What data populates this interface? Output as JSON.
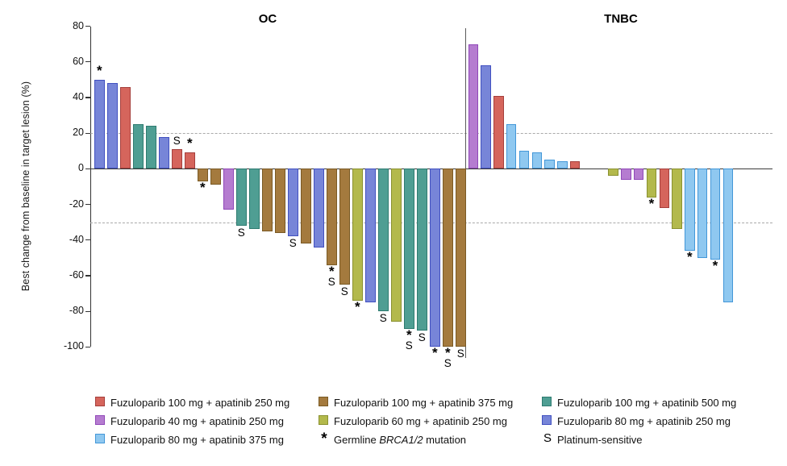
{
  "figure": {
    "panel_titles": [
      "OC",
      "TNBC"
    ]
  },
  "chart_data": {
    "type": "bar",
    "subtype": "waterfall",
    "title": "",
    "xlabel": "",
    "ylabel": "Best change from baseline in target lesion (%)",
    "ylim": [
      -100,
      80
    ],
    "yticks": [
      80,
      60,
      40,
      20,
      0,
      -20,
      -40,
      -60,
      -80,
      -100
    ],
    "reference_lines": [
      20,
      -30
    ],
    "grid": false,
    "legend_position": "bottom",
    "marker_meaning": {
      "star": "Germline BRCA1/2 mutation",
      "S": "Platinum-sensitive"
    },
    "colors": {
      "red": {
        "fill": "#D5655C",
        "border": "#A53F3C"
      },
      "brown": {
        "fill": "#A47A3E",
        "border": "#7A5A24"
      },
      "teal": {
        "fill": "#4F9E93",
        "border": "#2E7B70"
      },
      "purple": {
        "fill": "#B57CD0",
        "border": "#9048B8"
      },
      "olive": {
        "fill": "#B3B94C",
        "border": "#8A9130"
      },
      "indigo": {
        "fill": "#7785D8",
        "border": "#4150C0"
      },
      "lightblue": {
        "fill": "#8FC8F0",
        "border": "#4397D8"
      }
    },
    "panels": [
      {
        "name": "OC",
        "bars": [
          {
            "value": 50,
            "color": "indigo",
            "mark": "*"
          },
          {
            "value": 48,
            "color": "indigo",
            "mark": ""
          },
          {
            "value": 46,
            "color": "red",
            "mark": ""
          },
          {
            "value": 25,
            "color": "teal",
            "mark": ""
          },
          {
            "value": 24,
            "color": "teal",
            "mark": ""
          },
          {
            "value": 18,
            "color": "indigo",
            "mark": ""
          },
          {
            "value": 11,
            "color": "red",
            "mark": "S"
          },
          {
            "value": 9,
            "color": "red",
            "mark": "*"
          },
          {
            "value": -7,
            "color": "brown",
            "mark": "*"
          },
          {
            "value": -9,
            "color": "brown",
            "mark": ""
          },
          {
            "value": -23,
            "color": "purple",
            "mark": ""
          },
          {
            "value": -32,
            "color": "teal",
            "mark": "S"
          },
          {
            "value": -34,
            "color": "teal",
            "mark": ""
          },
          {
            "value": -35,
            "color": "brown",
            "mark": ""
          },
          {
            "value": -36,
            "color": "brown",
            "mark": ""
          },
          {
            "value": -38,
            "color": "indigo",
            "mark": "S"
          },
          {
            "value": -42,
            "color": "brown",
            "mark": ""
          },
          {
            "value": -44,
            "color": "indigo",
            "mark": ""
          },
          {
            "value": -54,
            "color": "brown",
            "mark": "*S"
          },
          {
            "value": -65,
            "color": "brown",
            "mark": "S"
          },
          {
            "value": -74,
            "color": "olive",
            "mark": "*"
          },
          {
            "value": -75,
            "color": "indigo",
            "mark": ""
          },
          {
            "value": -80,
            "color": "teal",
            "mark": "S"
          },
          {
            "value": -86,
            "color": "olive",
            "mark": ""
          },
          {
            "value": -90,
            "color": "teal",
            "mark": "*S"
          },
          {
            "value": -91,
            "color": "teal",
            "mark": "S"
          },
          {
            "value": -100,
            "color": "indigo",
            "mark": "*"
          },
          {
            "value": -100,
            "color": "brown",
            "mark": "*S"
          },
          {
            "value": -100,
            "color": "brown",
            "mark": "S"
          }
        ]
      },
      {
        "name": "TNBC",
        "gap_after_index": 8,
        "gap_slots": 2,
        "bars": [
          {
            "value": 70,
            "color": "purple",
            "mark": ""
          },
          {
            "value": 58,
            "color": "indigo",
            "mark": ""
          },
          {
            "value": 41,
            "color": "red",
            "mark": ""
          },
          {
            "value": 25,
            "color": "lightblue",
            "mark": ""
          },
          {
            "value": 10,
            "color": "lightblue",
            "mark": ""
          },
          {
            "value": 9,
            "color": "lightblue",
            "mark": ""
          },
          {
            "value": 5,
            "color": "lightblue",
            "mark": ""
          },
          {
            "value": 4,
            "color": "lightblue",
            "mark": ""
          },
          {
            "value": 4,
            "color": "red",
            "mark": ""
          },
          {
            "value": -4,
            "color": "olive",
            "mark": ""
          },
          {
            "value": -6,
            "color": "purple",
            "mark": ""
          },
          {
            "value": -6,
            "color": "purple",
            "mark": ""
          },
          {
            "value": -16,
            "color": "olive",
            "mark": "*"
          },
          {
            "value": -22,
            "color": "red",
            "mark": ""
          },
          {
            "value": -34,
            "color": "olive",
            "mark": ""
          },
          {
            "value": -46,
            "color": "lightblue",
            "mark": "*"
          },
          {
            "value": -50,
            "color": "lightblue",
            "mark": ""
          },
          {
            "value": -51,
            "color": "lightblue",
            "mark": "*"
          },
          {
            "value": -75,
            "color": "lightblue",
            "mark": ""
          }
        ]
      }
    ],
    "legend": [
      {
        "color": "red",
        "label": "Fuzuloparib 100 mg + apatinib 250 mg"
      },
      {
        "color": "purple",
        "label": "Fuzuloparib 40 mg + apatinib 250 mg"
      },
      {
        "color": "lightblue",
        "label": "Fuzuloparib 80 mg + apatinib 375 mg"
      },
      {
        "color": "brown",
        "label": "Fuzuloparib 100 mg + apatinib 375 mg"
      },
      {
        "color": "olive",
        "label": "Fuzuloparib 60 mg + apatinib 250 mg"
      },
      {
        "symbol": "*",
        "label_prefix": "Germline ",
        "label_italic": "BRCA1/2",
        "label_suffix": " mutation"
      },
      {
        "color": "teal",
        "label": "Fuzuloparib 100 mg + apatinib 500 mg"
      },
      {
        "color": "indigo",
        "label": "Fuzuloparib 80 mg + apatinib 250 mg"
      },
      {
        "symbol": "S",
        "label": "Platinum-sensitive"
      }
    ]
  }
}
